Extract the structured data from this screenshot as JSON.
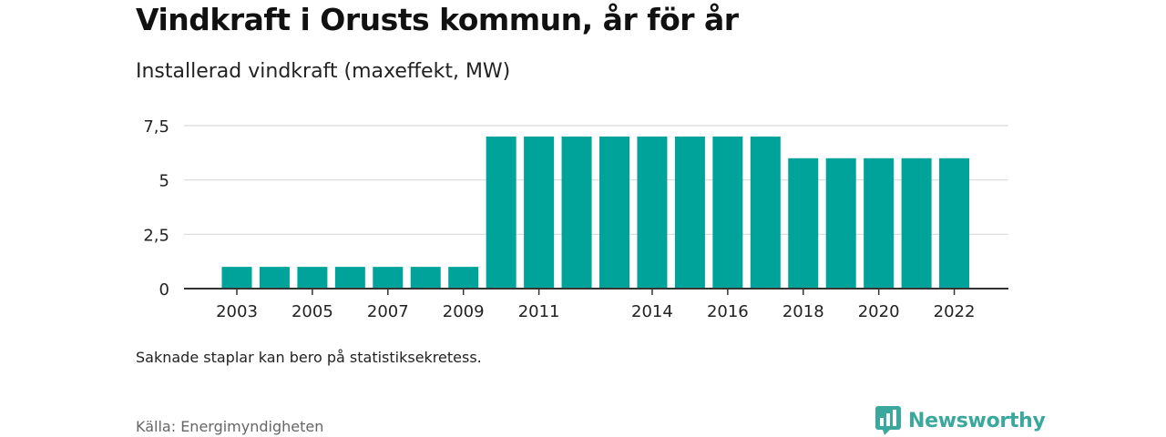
{
  "header": {
    "title": "Vindkraft i Orusts kommun, år för år",
    "subtitle": "Installerad vindkraft (maxeffekt, MW)"
  },
  "footer": {
    "note": "Saknade staplar kan bero på statistiksekretess.",
    "source": "Källa: Energimyndigheten",
    "brand": "Newsworthy"
  },
  "colors": {
    "bar": "#00a39a",
    "grid": "#d9d9d9",
    "axis": "#333333",
    "brand": "#3aa89c"
  },
  "icons": {
    "brand_logo": "newsworthy-logo-icon"
  },
  "chart_data": {
    "type": "bar",
    "title": "Vindkraft i Orusts kommun, år för år",
    "subtitle": "Installerad vindkraft (maxeffekt, MW)",
    "categories": [
      "2003",
      "2004",
      "2005",
      "2006",
      "2007",
      "2008",
      "2009",
      "2010",
      "2011",
      "2012",
      "2013",
      "2014",
      "2015",
      "2016",
      "2017",
      "2018",
      "2019",
      "2020",
      "2021",
      "2022"
    ],
    "values": [
      1,
      1,
      1,
      1,
      1,
      1,
      1,
      7,
      7,
      7,
      7,
      7,
      7,
      7,
      7,
      6,
      6,
      6,
      6,
      6
    ],
    "x_tick_labels": [
      "2003",
      "2005",
      "2007",
      "2009",
      "2011",
      "2014",
      "2016",
      "2018",
      "2020",
      "2022"
    ],
    "y_ticks": [
      0,
      2.5,
      5,
      7.5
    ],
    "y_tick_labels": [
      "0",
      "2,5",
      "5",
      "7,5"
    ],
    "ylim": [
      0,
      7.5
    ],
    "xlabel": "",
    "ylabel": "",
    "grid": true,
    "legend": "none"
  }
}
